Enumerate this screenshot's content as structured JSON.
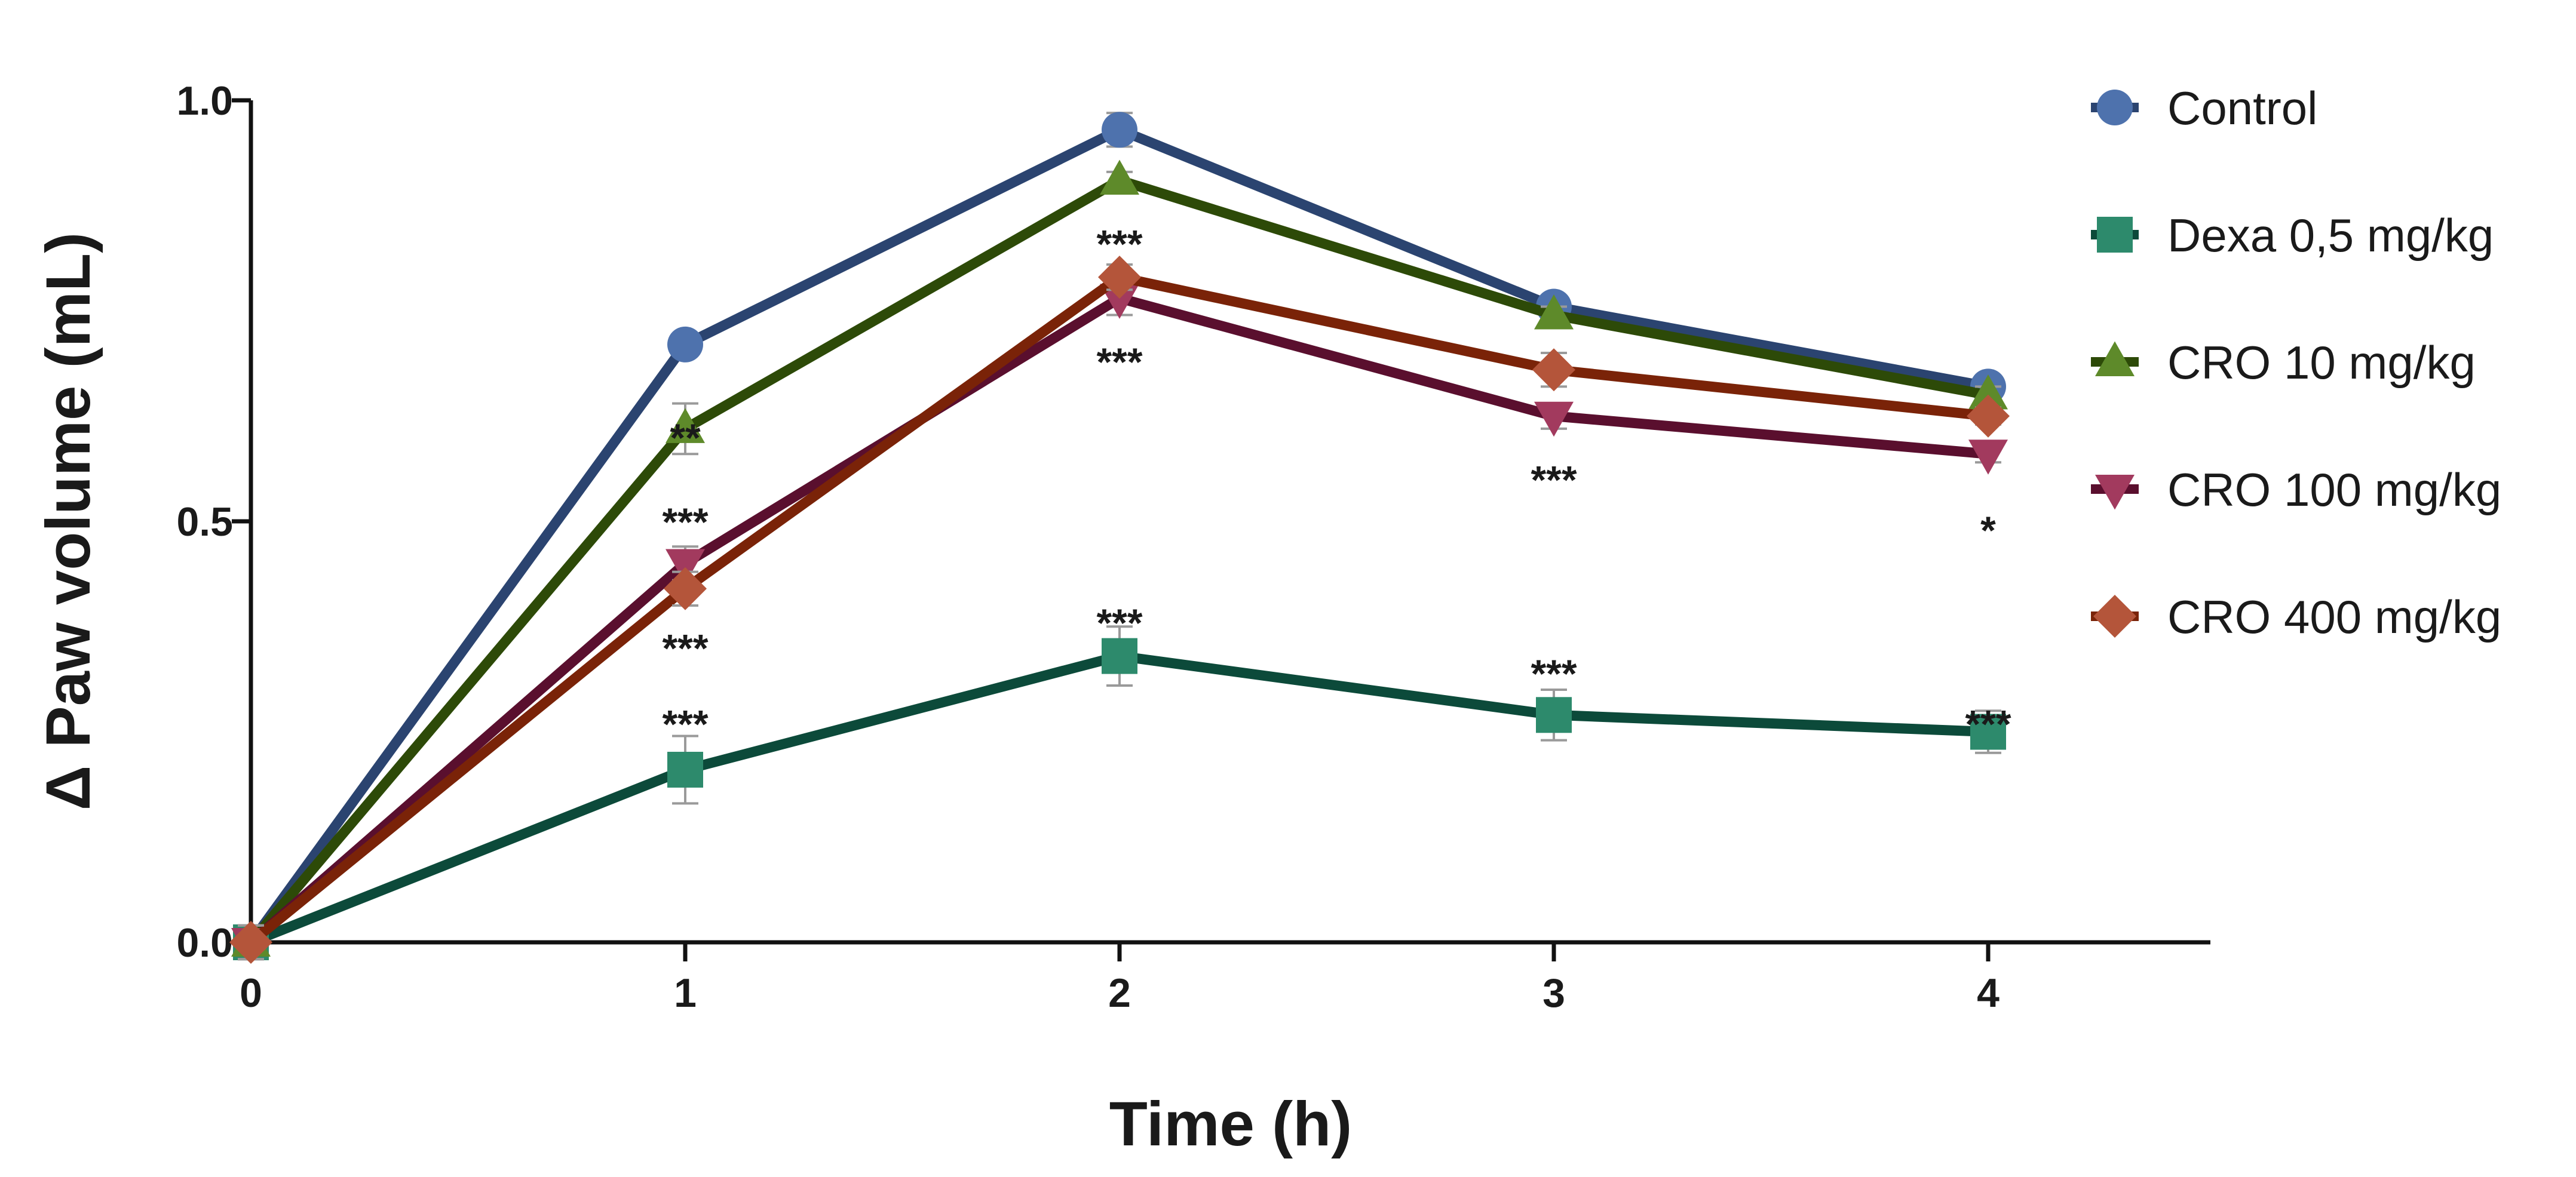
{
  "chart_data": {
    "type": "line",
    "title": "",
    "xlabel": "Time (h)",
    "ylabel": "Δ Paw volume (mL)",
    "x": [
      0,
      1,
      2,
      3,
      4
    ],
    "x_tick_labels": [
      "0",
      "1",
      "2",
      "3",
      "4"
    ],
    "y_ticks": [
      0.0,
      0.5,
      1.0
    ],
    "y_tick_labels": [
      "0.0",
      "0.5",
      "1.0"
    ],
    "xlim": [
      0,
      4.5
    ],
    "ylim": [
      0,
      1.0
    ],
    "grid": false,
    "legend_position": "right",
    "series": [
      {
        "name": "Control",
        "marker": "circle",
        "line_color": "#2b4470",
        "marker_color": "#4e72ad",
        "values": [
          0.0,
          0.71,
          0.965,
          0.755,
          0.66
        ],
        "errors": [
          0.02,
          0.01,
          0.02,
          0.01,
          0.01
        ]
      },
      {
        "name": "Dexa 0,5 mg/kg",
        "marker": "square",
        "line_color": "#0c4a3a",
        "marker_color": "#2d8a6c",
        "values": [
          0.0,
          0.205,
          0.34,
          0.27,
          0.25
        ],
        "errors": [
          0.02,
          0.04,
          0.035,
          0.03,
          0.025
        ]
      },
      {
        "name": "CRO 10 mg/kg",
        "marker": "triangle-up",
        "line_color": "#2d4a08",
        "marker_color": "#5e8a2a",
        "values": [
          0.0,
          0.61,
          0.905,
          0.745,
          0.65
        ],
        "errors": [
          0.02,
          0.03,
          0.01,
          0.01,
          0.01
        ]
      },
      {
        "name": "CRO 100 mg/kg",
        "marker": "triangle-down",
        "line_color": "#5a0f2e",
        "marker_color": "#a23a5e",
        "values": [
          0.0,
          0.45,
          0.765,
          0.625,
          0.58
        ],
        "errors": [
          0.02,
          0.02,
          0.02,
          0.015,
          0.01
        ]
      },
      {
        "name": "CRO 400 mg/kg",
        "marker": "diamond",
        "line_color": "#7a2308",
        "marker_color": "#b4553a",
        "values": [
          0.0,
          0.42,
          0.79,
          0.68,
          0.625
        ],
        "errors": [
          0.02,
          0.02,
          0.015,
          0.02,
          0.01
        ]
      }
    ],
    "annotations": [
      {
        "text": "**",
        "x": 1,
        "y": 0.6
      },
      {
        "text": "***",
        "x": 1,
        "y": 0.5
      },
      {
        "text": "***",
        "x": 1,
        "y": 0.35
      },
      {
        "text": "***",
        "x": 1,
        "y": 0.26
      },
      {
        "text": "***",
        "x": 2,
        "y": 0.83
      },
      {
        "text": "***",
        "x": 2,
        "y": 0.69
      },
      {
        "text": "***",
        "x": 2,
        "y": 0.38
      },
      {
        "text": "***",
        "x": 3,
        "y": 0.55
      },
      {
        "text": "***",
        "x": 3,
        "y": 0.32
      },
      {
        "text": "*",
        "x": 4,
        "y": 0.49
      },
      {
        "text": "***",
        "x": 4,
        "y": 0.26
      }
    ]
  }
}
